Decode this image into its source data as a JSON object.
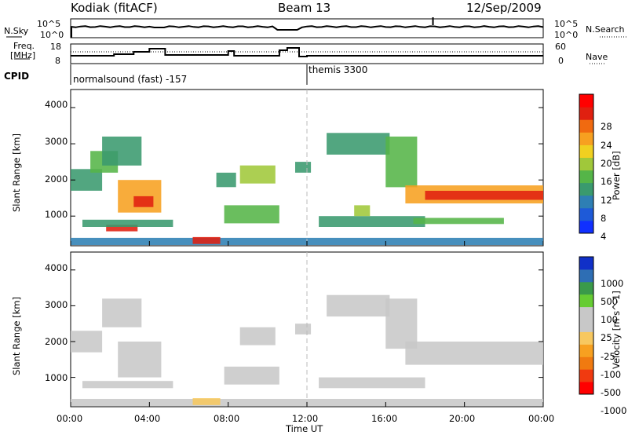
{
  "header": {
    "station": "Kodiak (fitACF)",
    "beam": "Beam 13",
    "date": "12/Sep/2009"
  },
  "noise_panel": {
    "left_label": "N.Sky",
    "right_label": "N.Search",
    "left_ticks": [
      "10^5",
      "10^0"
    ],
    "right_ticks": [
      "10^5",
      "10^0"
    ]
  },
  "freq_panel": {
    "left_label_1": "Freq.",
    "left_label_2": "[MHz]",
    "left_ticks": [
      "18",
      "8"
    ],
    "right_label": "Nave",
    "right_ticks": [
      "60",
      "0"
    ]
  },
  "cpid": {
    "label": "CPID",
    "modes": [
      {
        "text": "normalsound (fast) -157",
        "start_hour": 0
      },
      {
        "text": "themis 3300",
        "start_hour": 12
      }
    ]
  },
  "x_axis": {
    "label": "Time UT",
    "ticks": [
      "00:00",
      "04:00",
      "08:00",
      "12:00",
      "16:00",
      "20:00",
      "00:00"
    ]
  },
  "chart_data": [
    {
      "type": "heatmap",
      "title": "",
      "xlabel": "Time UT",
      "ylabel": "Slant Range [km]",
      "xlim": [
        0,
        24
      ],
      "ylim": [
        180,
        4500
      ],
      "yticks": [
        "4000",
        "3000",
        "2000",
        "1000"
      ],
      "colorbar": {
        "label": "Power [dB]",
        "ticks": [
          "28",
          "24",
          "20",
          "16",
          "12",
          "8",
          "4"
        ],
        "range": [
          0,
          30
        ],
        "colors": [
          "#1030ff",
          "#1e5ad8",
          "#2e7fb4",
          "#3a9a6e",
          "#55b548",
          "#a0c83a",
          "#f0d020",
          "#f7a020",
          "#f06a10",
          "#e02010",
          "#ff0000"
        ]
      },
      "regions": [
        {
          "t0": 0.0,
          "t1": 24.0,
          "r0": 200,
          "r1": 400,
          "power": 6
        },
        {
          "t0": 0.0,
          "t1": 1.6,
          "r0": 1700,
          "r1": 2300,
          "power": 10
        },
        {
          "t0": 1.0,
          "t1": 2.4,
          "r0": 2200,
          "r1": 2800,
          "power": 12
        },
        {
          "t0": 1.6,
          "t1": 3.6,
          "r0": 2400,
          "r1": 3200,
          "power": 8
        },
        {
          "t0": 2.4,
          "t1": 4.6,
          "r0": 1100,
          "r1": 2000,
          "power": 20
        },
        {
          "t0": 3.2,
          "t1": 4.2,
          "r0": 1250,
          "r1": 1550,
          "power": 28
        },
        {
          "t0": 1.8,
          "t1": 3.4,
          "r0": 580,
          "r1": 760,
          "power": 27
        },
        {
          "t0": 0.6,
          "t1": 5.2,
          "r0": 700,
          "r1": 900,
          "power": 10
        },
        {
          "t0": 6.2,
          "t1": 7.6,
          "r0": 230,
          "r1": 420,
          "power": 26
        },
        {
          "t0": 7.8,
          "t1": 10.6,
          "r0": 800,
          "r1": 1300,
          "power": 13
        },
        {
          "t0": 8.6,
          "t1": 10.4,
          "r0": 1900,
          "r1": 2400,
          "power": 15
        },
        {
          "t0": 7.4,
          "t1": 8.4,
          "r0": 1800,
          "r1": 2200,
          "power": 8
        },
        {
          "t0": 11.4,
          "t1": 12.2,
          "r0": 2200,
          "r1": 2500,
          "power": 10
        },
        {
          "t0": 12.6,
          "t1": 18.0,
          "r0": 700,
          "r1": 1000,
          "power": 10
        },
        {
          "t0": 14.4,
          "t1": 15.2,
          "r0": 1000,
          "r1": 1300,
          "power": 16
        },
        {
          "t0": 13.0,
          "t1": 16.2,
          "r0": 2700,
          "r1": 3300,
          "power": 8
        },
        {
          "t0": 16.0,
          "t1": 17.6,
          "r0": 1800,
          "r1": 3200,
          "power": 12
        },
        {
          "t0": 17.0,
          "t1": 24.0,
          "r0": 1350,
          "r1": 1850,
          "power": 21
        },
        {
          "t0": 18.0,
          "t1": 24.0,
          "r0": 1450,
          "r1": 1700,
          "power": 27
        },
        {
          "t0": 17.4,
          "t1": 22.0,
          "r0": 780,
          "r1": 950,
          "power": 11
        }
      ]
    },
    {
      "type": "heatmap",
      "title": "",
      "xlabel": "Time UT",
      "ylabel": "Slant Range [km]",
      "xlim": [
        0,
        24
      ],
      "ylim": [
        180,
        4500
      ],
      "yticks": [
        "4000",
        "3000",
        "2000",
        "1000"
      ],
      "colorbar": {
        "label": "Velocity [m s^-1]",
        "ticks": [
          "1000",
          "500",
          "100",
          "25",
          "-25",
          "-100",
          "-500",
          "-1000"
        ],
        "range": [
          -1200,
          1200
        ],
        "colors": [
          "#ff0000",
          "#f03a10",
          "#f07a10",
          "#f7a020",
          "#f7c860",
          "#c8c8c8",
          "#c8c8c8",
          "#66cc33",
          "#3a9a4a",
          "#2e6eb4",
          "#1030c8"
        ]
      },
      "regions": [
        {
          "t0": 0.0,
          "t1": 24.0,
          "r0": 200,
          "r1": 400,
          "velocity": -120
        },
        {
          "t0": 0.0,
          "t1": 1.6,
          "r0": 1700,
          "r1": 2300,
          "velocity": 0
        },
        {
          "t0": 1.6,
          "t1": 3.6,
          "r0": 2400,
          "r1": 3200,
          "velocity": 0
        },
        {
          "t0": 2.4,
          "t1": 4.6,
          "r0": 1000,
          "r1": 2000,
          "velocity": 160
        },
        {
          "t0": 0.6,
          "t1": 5.2,
          "r0": 700,
          "r1": 900,
          "velocity": 0
        },
        {
          "t0": 7.8,
          "t1": 10.6,
          "r0": 800,
          "r1": 1300,
          "velocity": 0
        },
        {
          "t0": 8.6,
          "t1": 10.4,
          "r0": 1900,
          "r1": 2400,
          "velocity": 0
        },
        {
          "t0": 11.4,
          "t1": 12.2,
          "r0": 2200,
          "r1": 2500,
          "velocity": 0
        },
        {
          "t0": 12.6,
          "t1": 18.0,
          "r0": 700,
          "r1": 1000,
          "velocity": 0
        },
        {
          "t0": 13.0,
          "t1": 16.2,
          "r0": 2700,
          "r1": 3300,
          "velocity": 0
        },
        {
          "t0": 16.0,
          "t1": 17.6,
          "r0": 1800,
          "r1": 3200,
          "velocity": 0
        },
        {
          "t0": 17.0,
          "t1": 24.0,
          "r0": 1350,
          "r1": 2000,
          "velocity": 0
        },
        {
          "t0": 6.2,
          "t1": 7.6,
          "r0": 230,
          "r1": 420,
          "velocity": -200
        }
      ]
    }
  ],
  "colors": {
    "background": "#ffffff",
    "axis": "#000000",
    "midline": "#bbbbbb"
  }
}
